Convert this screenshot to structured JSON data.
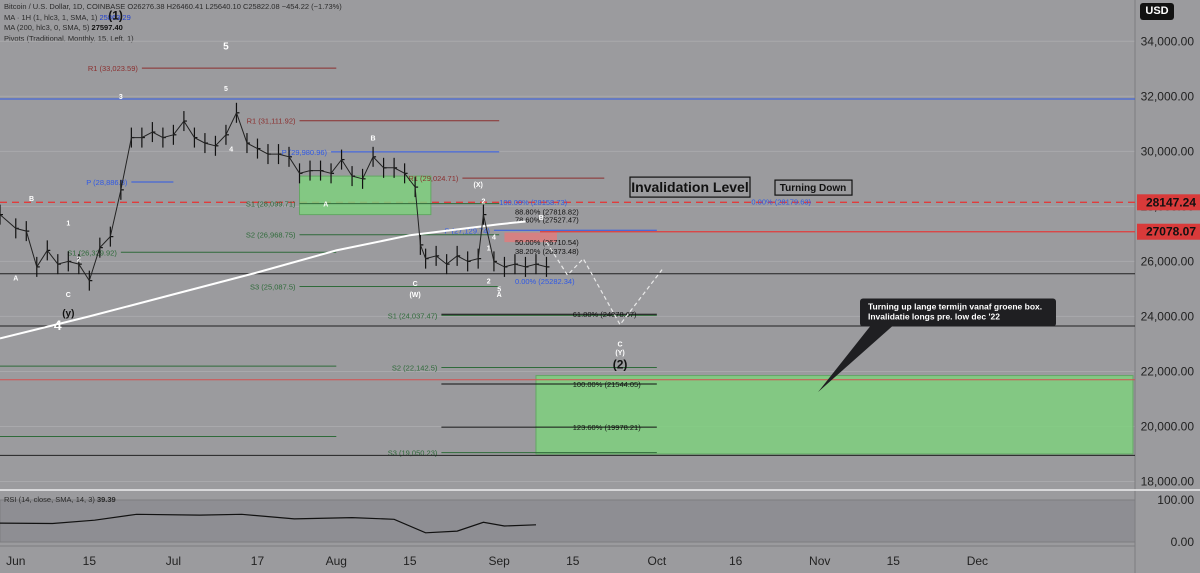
{
  "legend": {
    "ohlc": [
      "Bitcoin / U.S. Dollar, 1D, COINBASE",
      "O26276.38",
      "H26460.41",
      "L25640.10",
      "C25822.08",
      "−454.22 (−1.73%)"
    ],
    "ma1_label": "MA · 1H (1, hlc3, 1, SMA, 1)",
    "ma1_value": "25863.29",
    "ma2_label": "MA (200, hlc3, 0, SMA, 5)",
    "ma2_value": "27597.40",
    "pivots_label": "Pivots (Traditional, Monthly, 15, Left, 1)"
  },
  "currency": "USD",
  "chart_data": {
    "type": "candlestick",
    "title": "",
    "xlabel": "",
    "ylabel": "",
    "y_axis": {
      "ticks": [
        18000,
        20000,
        22000,
        24000,
        26000,
        28000,
        30000,
        32000,
        34000
      ],
      "ylim": [
        17800,
        35500
      ]
    },
    "x_axis": {
      "ticks": [
        {
          "label": "Jun",
          "date": "2023-06-01"
        },
        {
          "label": "15",
          "date": "2023-06-15"
        },
        {
          "label": "Jul",
          "date": "2023-07-01"
        },
        {
          "label": "17",
          "date": "2023-07-17"
        },
        {
          "label": "Aug",
          "date": "2023-08-01"
        },
        {
          "label": "15",
          "date": "2023-08-15"
        },
        {
          "label": "Sep",
          "date": "2023-09-01"
        },
        {
          "label": "15",
          "date": "2023-09-15"
        },
        {
          "label": "Oct",
          "date": "2023-10-01"
        },
        {
          "label": "16",
          "date": "2023-10-16"
        },
        {
          "label": "Nov",
          "date": "2023-11-01"
        },
        {
          "label": "15",
          "date": "2023-11-15"
        },
        {
          "label": "Dec",
          "date": "2023-12-01"
        }
      ]
    },
    "price_close": [
      {
        "date": "2023-05-29",
        "close": 27700
      },
      {
        "date": "2023-06-01",
        "close": 27200
      },
      {
        "date": "2023-06-03",
        "close": 27100
      },
      {
        "date": "2023-06-05",
        "close": 25800
      },
      {
        "date": "2023-06-07",
        "close": 26400
      },
      {
        "date": "2023-06-09",
        "close": 25900
      },
      {
        "date": "2023-06-11",
        "close": 26000
      },
      {
        "date": "2023-06-13",
        "close": 25900
      },
      {
        "date": "2023-06-15",
        "close": 25300
      },
      {
        "date": "2023-06-17",
        "close": 26500
      },
      {
        "date": "2023-06-19",
        "close": 26900
      },
      {
        "date": "2023-06-21",
        "close": 28600
      },
      {
        "date": "2023-06-23",
        "close": 30500
      },
      {
        "date": "2023-06-25",
        "close": 30500
      },
      {
        "date": "2023-06-27",
        "close": 30700
      },
      {
        "date": "2023-06-29",
        "close": 30500
      },
      {
        "date": "2023-07-01",
        "close": 30600
      },
      {
        "date": "2023-07-03",
        "close": 31100
      },
      {
        "date": "2023-07-05",
        "close": 30500
      },
      {
        "date": "2023-07-07",
        "close": 30300
      },
      {
        "date": "2023-07-09",
        "close": 30200
      },
      {
        "date": "2023-07-11",
        "close": 30600
      },
      {
        "date": "2023-07-13",
        "close": 31400
      },
      {
        "date": "2023-07-15",
        "close": 30300
      },
      {
        "date": "2023-07-17",
        "close": 30100
      },
      {
        "date": "2023-07-19",
        "close": 29900
      },
      {
        "date": "2023-07-21",
        "close": 29900
      },
      {
        "date": "2023-07-23",
        "close": 29800
      },
      {
        "date": "2023-07-25",
        "close": 29200
      },
      {
        "date": "2023-07-27",
        "close": 29300
      },
      {
        "date": "2023-07-29",
        "close": 29300
      },
      {
        "date": "2023-07-31",
        "close": 29200
      },
      {
        "date": "2023-08-02",
        "close": 29700
      },
      {
        "date": "2023-08-04",
        "close": 29100
      },
      {
        "date": "2023-08-06",
        "close": 29000
      },
      {
        "date": "2023-08-08",
        "close": 29800
      },
      {
        "date": "2023-08-10",
        "close": 29400
      },
      {
        "date": "2023-08-12",
        "close": 29400
      },
      {
        "date": "2023-08-14",
        "close": 29200
      },
      {
        "date": "2023-08-16",
        "close": 28700
      },
      {
        "date": "2023-08-17",
        "close": 26600
      },
      {
        "date": "2023-08-18",
        "close": 26100
      },
      {
        "date": "2023-08-20",
        "close": 26200
      },
      {
        "date": "2023-08-22",
        "close": 25900
      },
      {
        "date": "2023-08-24",
        "close": 26200
      },
      {
        "date": "2023-08-26",
        "close": 26000
      },
      {
        "date": "2023-08-28",
        "close": 26100
      },
      {
        "date": "2023-08-29",
        "close": 27700
      },
      {
        "date": "2023-08-31",
        "close": 26000
      },
      {
        "date": "2023-09-02",
        "close": 25800
      },
      {
        "date": "2023-09-04",
        "close": 25900
      },
      {
        "date": "2023-09-06",
        "close": 25800
      },
      {
        "date": "2023-09-08",
        "close": 25900
      },
      {
        "date": "2023-09-10",
        "close": 25800
      }
    ],
    "ma200": [
      {
        "date": "2023-05-29",
        "value": 23200
      },
      {
        "date": "2023-06-15",
        "value": 24000
      },
      {
        "date": "2023-07-01",
        "value": 24800
      },
      {
        "date": "2023-07-17",
        "value": 25600
      },
      {
        "date": "2023-08-01",
        "value": 26400
      },
      {
        "date": "2023-08-15",
        "value": 26950
      },
      {
        "date": "2023-09-01",
        "value": 27350
      },
      {
        "date": "2023-09-06",
        "value": 27450
      }
    ],
    "rsi": {
      "label": "RSI (14, close, SMA, 14, 3)",
      "value": "39.39",
      "ticks": [
        100,
        0
      ],
      "tick_labels": [
        "100.00",
        "0.00"
      ],
      "ylim": [
        0,
        100
      ],
      "points": [
        {
          "date": "2023-05-29",
          "value": 45
        },
        {
          "date": "2023-06-08",
          "value": 44
        },
        {
          "date": "2023-06-16",
          "value": 52
        },
        {
          "date": "2023-06-24",
          "value": 66
        },
        {
          "date": "2023-07-06",
          "value": 64
        },
        {
          "date": "2023-07-14",
          "value": 66
        },
        {
          "date": "2023-07-24",
          "value": 55
        },
        {
          "date": "2023-08-04",
          "value": 58
        },
        {
          "date": "2023-08-12",
          "value": 54
        },
        {
          "date": "2023-08-18",
          "value": 22
        },
        {
          "date": "2023-08-24",
          "value": 26
        },
        {
          "date": "2023-08-29",
          "value": 47
        },
        {
          "date": "2023-09-02",
          "value": 38
        },
        {
          "date": "2023-09-08",
          "value": 41
        }
      ]
    },
    "price_labels": [
      {
        "value": 28147.24,
        "label": "28147.24"
      },
      {
        "value": 27078.07,
        "label": "27078.07"
      }
    ],
    "pivot_levels": [
      {
        "label": "R1 (33,023.59)",
        "value": 33023.59,
        "kind": "resistance"
      },
      {
        "label": "R1 (31,111.92)",
        "value": 31111.92,
        "kind": "resistance"
      },
      {
        "label": "P (29,980.96)",
        "value": 29980.96,
        "kind": "pivot"
      },
      {
        "label": "R1 (29,024.71)",
        "value": 29024.71,
        "kind": "resistance"
      },
      {
        "label": "P (28,886.8)",
        "value": 28886.8,
        "kind": "pivot"
      },
      {
        "label": "S1 (28,099.71)",
        "value": 28099.71,
        "kind": "support"
      },
      {
        "label": "P (27,129.74)",
        "value": 27129.74,
        "kind": "pivot"
      },
      {
        "label": "S2 (26,968.75)",
        "value": 26968.75,
        "kind": "support"
      },
      {
        "label": "S1 (26,329.92)",
        "value": 26329.92,
        "kind": "support"
      },
      {
        "label": "S3 (25,087.5)",
        "value": 25087.5,
        "kind": "support"
      },
      {
        "label": "S1 (24,037.47)",
        "value": 24037.47,
        "kind": "support"
      },
      {
        "label": "S2 (22,193.13)",
        "value": 22193.13,
        "kind": "support"
      },
      {
        "label": "S2 (22,142.5)",
        "value": 22142.5,
        "kind": "support"
      },
      {
        "label": "S3 (19,636.25)",
        "value": 19636.25,
        "kind": "support"
      },
      {
        "label": "S3 (19,050.23)",
        "value": 19050.23,
        "kind": "support"
      }
    ],
    "fib_levels": [
      {
        "label": "100.00% (28158.73)",
        "value": 28158.73
      },
      {
        "label": "0.00% (28179.63)",
        "value": 28179.63
      },
      {
        "label": "88.80% (27818.82)",
        "value": 27818.82
      },
      {
        "label": "78.60% (27527.47)",
        "value": 27527.47
      },
      {
        "label": "50.00% (26710.54)",
        "value": 26710.54
      },
      {
        "label": "38.20% (26373.48)",
        "value": 26373.48
      },
      {
        "label": "0.00% (25282.34)",
        "value": 25282.34
      },
      {
        "label": "61.80% (24078.67)",
        "value": 24078.67
      },
      {
        "label": "100.00% (21544.05)",
        "value": 21544.05
      },
      {
        "label": "123.60% (19978.21)",
        "value": 19978.21
      }
    ],
    "wave_labels": [
      "(1)",
      "5",
      "5",
      "3",
      "4",
      "1",
      "2",
      "B",
      "A",
      "C",
      "(y)",
      "4",
      "B",
      "A",
      "C",
      "(W)",
      "(X)",
      "2",
      "4",
      "1",
      "2",
      "5",
      "A",
      "B",
      "C",
      "(Y)",
      "(2)"
    ],
    "annotations": {
      "invalidation": "Invalidation Level",
      "turning_down": "Turning Down",
      "callout": [
        "Turning up lange termijn vanaf groene box.",
        "Invalidatie longs pre. low dec '22"
      ]
    },
    "colors": {
      "background": "#9b9b9e",
      "pivot_red": "#8b2f2f",
      "pivot_green": "#2f6b3a",
      "blue": "#2f59e6",
      "red": "#e03c3c",
      "green_box": "#7fd17f",
      "ma200": "#ffffff"
    }
  }
}
